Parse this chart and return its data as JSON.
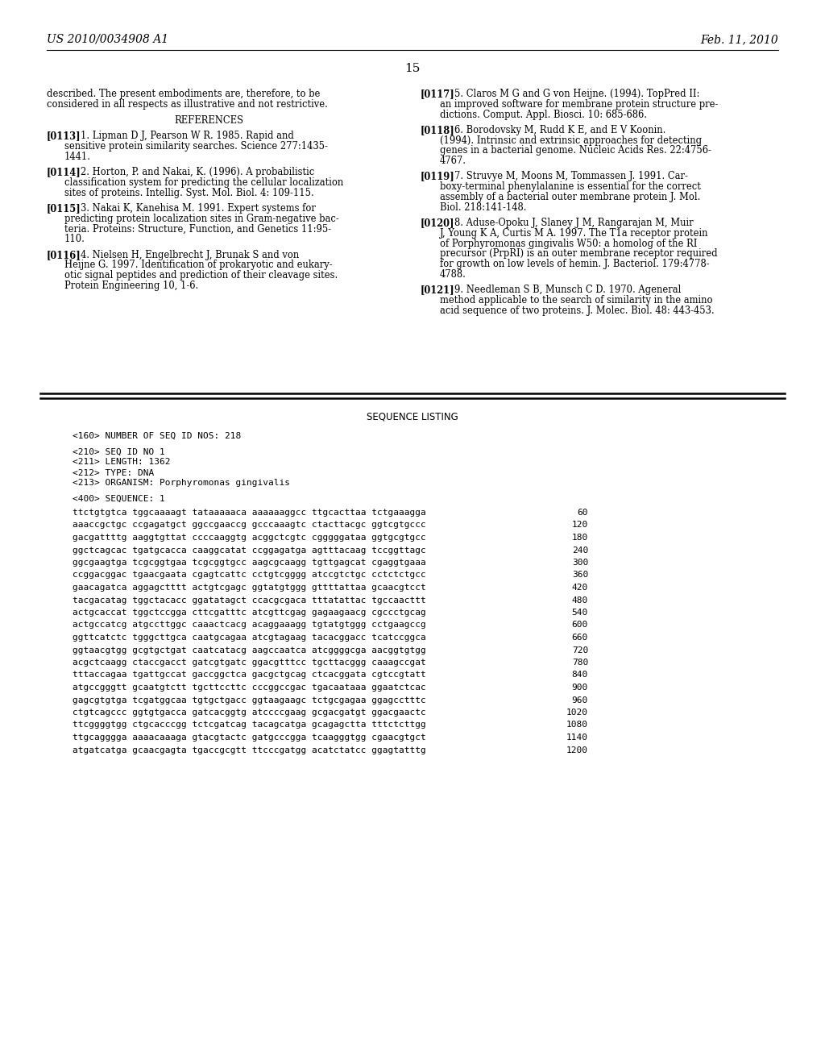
{
  "background_color": "#ffffff",
  "page_number": "15",
  "header_left": "US 2010/0034908 A1",
  "header_right": "Feb. 11, 2010",
  "left_col_blocks": [
    {
      "lines": [
        "described. The present embodiments are, therefore, to be",
        "considered in all respects as illustrative and not restrictive."
      ]
    },
    {
      "lines": [
        "REFERENCES"
      ],
      "center": true
    },
    {
      "tag": "[0113]",
      "lines": [
        "1. Lipman D J, Pearson W R. 1985. Rapid and",
        "sensitive protein similarity searches. Science 277:1435-",
        "1441."
      ]
    },
    {
      "tag": "[0114]",
      "lines": [
        "2. Horton, P. and Nakai, K. (1996). A probabilistic",
        "classification system for predicting the cellular localization",
        "sites of proteins. Intellig. Syst. Mol. Biol. 4: 109-115."
      ]
    },
    {
      "tag": "[0115]",
      "lines": [
        "3. Nakai K, Kanehisa M. 1991. Expert systems for",
        "predicting protein localization sites in Gram-negative bac-",
        "teria. Proteins: Structure, Function, and Genetics 11:95-",
        "110."
      ]
    },
    {
      "tag": "[0116]",
      "lines": [
        "4. Nielsen H, Engelbrecht J, Brunak S and von",
        "Heijne G. 1997. Identification of prokaryotic and eukary-",
        "otic signal peptides and prediction of their cleavage sites.",
        "Protein Engineering 10, 1-6."
      ]
    }
  ],
  "right_col_blocks": [
    {
      "tag": "[0117]",
      "lines": [
        "5. Claros M G and G von Heijne. (1994). TopPred II:",
        "an improved software for membrane protein structure pre-",
        "dictions. Comput. Appl. Biosci. 10: 685-686."
      ]
    },
    {
      "tag": "[0118]",
      "lines": [
        "6. Borodovsky M, Rudd K E, and E V Koonin.",
        "(1994). Intrinsic and extrinsic approaches for detecting",
        "genes in a bacterial genome. Nucleic Acids Res. 22:4756-",
        "4767."
      ]
    },
    {
      "tag": "[0119]",
      "lines": [
        "7. Struvye M, Moons M, Tommassen J. 1991. Car-",
        "boxy-terminal phenylalanine is essential for the correct",
        "assembly of a bacterial outer membrane protein J. Mol.",
        "Biol. 218:141-148."
      ]
    },
    {
      "tag": "[0120]",
      "lines": [
        "8. Aduse-Opoku J, Slaney J M, Rangarajan M, Muir",
        "J, Young K A, Curtis M A. 1997. The T1a receptor protein",
        "of Porphyromonas gingivalis W50: a homolog of the RI",
        "precursor (PrpRI) is an outer membrane receptor required",
        "for growth on low levels of hemin. J. Bacteriol. 179:4778-",
        "4788."
      ]
    },
    {
      "tag": "[0121]",
      "lines": [
        "9. Needleman S B, Munsch C D. 1970. Ageneral",
        "method applicable to the search of similarity in the amino",
        "acid sequence of two proteins. J. Molec. Biol. 48: 443-453."
      ]
    }
  ],
  "sequence_listing_title": "SEQUENCE LISTING",
  "seq_metadata": [
    "<160> NUMBER OF SEQ ID NOS: 218",
    "",
    "<210> SEQ ID NO 1",
    "<211> LENGTH: 1362",
    "<212> TYPE: DNA",
    "<213> ORGANISM: Porphyromonas gingivalis",
    "",
    "<400> SEQUENCE: 1"
  ],
  "sequence_lines": [
    [
      "ttctgtgtca tggcaaaagt tataaaaaca aaaaaaggcc ttgcacttaa tctgaaagga",
      "60"
    ],
    [
      "aaaccgctgc ccgagatgct ggccgaaccg gcccaaagtc ctacttacgc ggtcgtgccc",
      "120"
    ],
    [
      "gacgattttg aaggtgttat ccccaaggtg acggctcgtc cgggggataa ggtgcgtgcc",
      "180"
    ],
    [
      "ggctcagcac tgatgcacca caaggcatat ccggagatga agtttacaag tccggttagc",
      "240"
    ],
    [
      "ggcgaagtga tcgcggtgaa tcgcggtgcc aagcgcaagg tgttgagcat cgaggtgaaa",
      "300"
    ],
    [
      "ccggacggac tgaacgaata cgagtcattc cctgtcgggg atccgtctgc cctctctgcc",
      "360"
    ],
    [
      "gaacagatca aggagctttt actgtcgagc ggtatgtggg gttttattaa gcaacgtcct",
      "420"
    ],
    [
      "tacgacatag tggctacacc ggatatagct ccacgcgaca tttatattac tgccaacttt",
      "480"
    ],
    [
      "actgcaccat tggctccgga cttcgatttc atcgttcgag gagaagaacg cgccctgcag",
      "540"
    ],
    [
      "actgccatcg atgccttggc caaactcacg acaggaaagg tgtatgtggg cctgaagccg",
      "600"
    ],
    [
      "ggttcatctc tgggcttgca caatgcagaa atcgtagaag tacacggacc tcatccggca",
      "660"
    ],
    [
      "ggtaacgtgg gcgtgctgat caatcatacg aagccaatca atcggggcga aacggtgtgg",
      "720"
    ],
    [
      "acgctcaagg ctaccgacct gatcgtgatc ggacgtttcc tgcttacggg caaagccgat",
      "780"
    ],
    [
      "tttaccagaa tgattgccat gaccggctca gacgctgcag ctcacggata cgtccgtatt",
      "840"
    ],
    [
      "atgccgggtt gcaatgtctt tgcttccttc cccggccgac tgacaataaa ggaatctcac",
      "900"
    ],
    [
      "gagcgtgtga tcgatggcaa tgtgctgacc ggtaagaagc tctgcgagaa ggagcctttc",
      "960"
    ],
    [
      "ctgtcagccc ggtgtgacca gatcacggtg atccccgaag gcgacgatgt ggacgaactc",
      "1020"
    ],
    [
      "ttcggggtgg ctgcacccgg tctcgatcag tacagcatga gcagagctta tttctcttgg",
      "1080"
    ],
    [
      "ttgcagggga aaaacaaaga gtacgtactc gatgcccgga tcaagggtgg cgaacgtgct",
      "1140"
    ],
    [
      "atgatcatga gcaacgagta tgaccgcgtt ttcccgatgg acatctatcc ggagtatttg",
      "1200"
    ]
  ]
}
